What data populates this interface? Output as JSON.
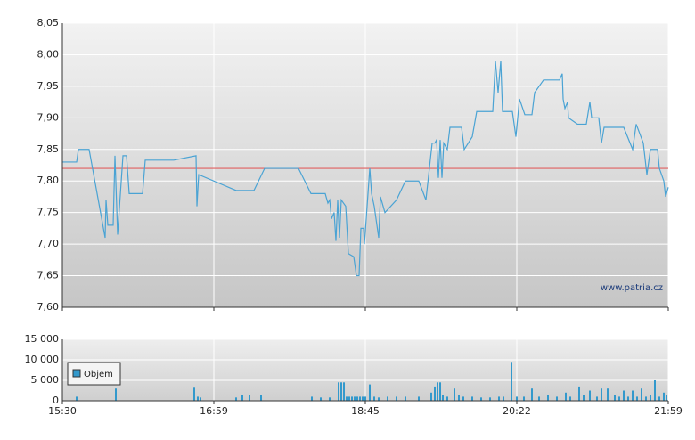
{
  "chart_data": [
    {
      "type": "line",
      "color": "#4aa3d4",
      "reference_line": 7.82,
      "reference_color": "#e06060",
      "watermark": "www.patria.cz",
      "xlim": [
        0,
        680
      ],
      "ylim": [
        7.6,
        8.05
      ],
      "yticks": [
        {
          "value": 7.6,
          "label": "7,60"
        },
        {
          "value": 7.65,
          "label": "7,65"
        },
        {
          "value": 7.7,
          "label": "7,70"
        },
        {
          "value": 7.75,
          "label": "7,75"
        },
        {
          "value": 7.8,
          "label": "7,80"
        },
        {
          "value": 7.85,
          "label": "7,85"
        },
        {
          "value": 7.9,
          "label": "7,90"
        },
        {
          "value": 7.95,
          "label": "7,95"
        },
        {
          "value": 8.0,
          "label": "8,00"
        },
        {
          "value": 8.05,
          "label": "8,05"
        }
      ],
      "x": [
        0,
        16,
        18,
        30,
        48,
        49,
        51,
        57,
        59,
        62,
        68,
        72,
        75,
        90,
        93,
        125,
        150,
        151,
        153,
        195,
        215,
        227,
        265,
        279,
        295,
        298,
        300,
        302,
        305,
        307,
        309,
        311,
        313,
        318,
        321,
        327,
        330,
        333,
        335,
        338,
        339,
        342,
        345,
        347,
        350,
        353,
        355,
        357,
        362,
        375,
        385,
        400,
        408,
        415,
        418,
        420,
        422,
        424,
        426,
        428,
        432,
        435,
        448,
        451,
        460,
        465,
        483,
        486,
        489,
        492,
        494,
        505,
        509,
        513,
        519,
        527,
        530,
        540,
        558,
        561,
        562,
        564,
        567,
        568,
        578,
        588,
        592,
        594,
        602,
        605,
        608,
        630,
        640,
        644,
        652,
        656,
        660,
        668,
        670,
        675,
        677,
        680
      ],
      "values": [
        7.83,
        7.83,
        7.85,
        7.85,
        7.71,
        7.77,
        7.73,
        7.73,
        7.84,
        7.715,
        7.84,
        7.84,
        7.78,
        7.78,
        7.833,
        7.833,
        7.84,
        7.76,
        7.81,
        7.785,
        7.785,
        7.82,
        7.82,
        7.78,
        7.78,
        7.765,
        7.77,
        7.74,
        7.75,
        7.705,
        7.77,
        7.71,
        7.77,
        7.76,
        7.685,
        7.68,
        7.65,
        7.65,
        7.725,
        7.725,
        7.7,
        7.76,
        7.82,
        7.78,
        7.76,
        7.73,
        7.71,
        7.775,
        7.75,
        7.77,
        7.8,
        7.8,
        7.77,
        7.86,
        7.86,
        7.865,
        7.805,
        7.865,
        7.805,
        7.86,
        7.85,
        7.885,
        7.885,
        7.85,
        7.87,
        7.91,
        7.91,
        7.99,
        7.94,
        7.99,
        7.91,
        7.91,
        7.87,
        7.93,
        7.905,
        7.905,
        7.94,
        7.96,
        7.96,
        7.97,
        7.93,
        7.915,
        7.925,
        7.9,
        7.89,
        7.89,
        7.925,
        7.9,
        7.9,
        7.86,
        7.885,
        7.885,
        7.85,
        7.89,
        7.86,
        7.81,
        7.85,
        7.85,
        7.82,
        7.8,
        7.775,
        7.79
      ]
    },
    {
      "type": "bar",
      "xlim": [
        0,
        680
      ],
      "ylim": [
        0,
        15000
      ],
      "yticks": [
        0,
        {
          "value": 5000,
          "label": "5 000"
        },
        {
          "value": 10000,
          "label": "10 000"
        },
        {
          "value": 15000,
          "label": "15 000"
        }
      ],
      "xticks": [
        {
          "value": 0,
          "label": "15:30"
        },
        {
          "value": 170,
          "label": "16:59"
        },
        {
          "value": 340,
          "label": "18:45"
        },
        {
          "value": 510,
          "label": "20:22"
        },
        {
          "value": 680,
          "label": "21:59"
        }
      ],
      "x": [
        16,
        60,
        148,
        152,
        155,
        195,
        202,
        210,
        223,
        280,
        290,
        300,
        310,
        313,
        316,
        319,
        322,
        325,
        328,
        331,
        334,
        337,
        340,
        345,
        350,
        355,
        365,
        375,
        385,
        400,
        414,
        418,
        421,
        424,
        427,
        432,
        440,
        445,
        450,
        460,
        470,
        480,
        490,
        495,
        504,
        510,
        518,
        527,
        535,
        545,
        555,
        565,
        570,
        580,
        585,
        592,
        600,
        605,
        612,
        620,
        625,
        630,
        635,
        640,
        645,
        650,
        655,
        660,
        665,
        670,
        675,
        678
      ],
      "series": [
        {
          "name": "Objem",
          "color": "#3399cc",
          "values": [
            1000,
            3000,
            3200,
            1000,
            800,
            800,
            1500,
            1500,
            1500,
            1000,
            800,
            800,
            4500,
            4500,
            4500,
            1000,
            1000,
            1000,
            1000,
            1000,
            1000,
            1000,
            1000,
            4000,
            1000,
            800,
            1000,
            1000,
            1000,
            1000,
            2000,
            3500,
            4500,
            4500,
            1500,
            1000,
            3000,
            1500,
            1000,
            1000,
            800,
            800,
            1000,
            1000,
            9500,
            1000,
            1000,
            3000,
            1000,
            1500,
            1000,
            2000,
            1000,
            3500,
            1500,
            2500,
            1000,
            3000,
            3000,
            1500,
            1000,
            2500,
            1000,
            2500,
            1000,
            3000,
            1000,
            1500,
            5000,
            1000,
            2000,
            1500
          ]
        }
      ]
    }
  ]
}
